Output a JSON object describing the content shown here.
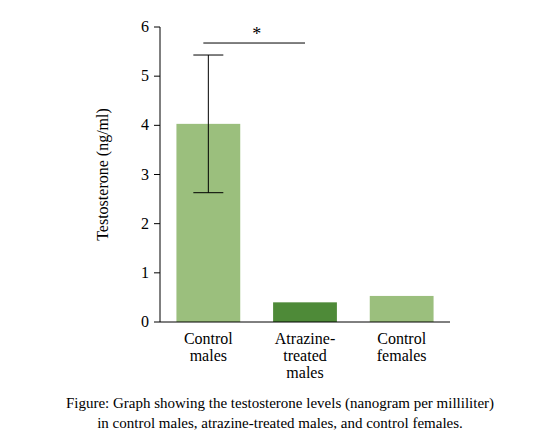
{
  "chart_data": {
    "type": "bar",
    "y_label": "Testosterone (ng/ml)",
    "categories": [
      "Control males",
      "Atrazine-treated males",
      "Control females"
    ],
    "values": [
      4.03,
      0.4,
      0.53
    ],
    "errors": [
      1.4,
      null,
      null
    ],
    "colors": [
      "#9bbf7d",
      "#4e8a38",
      "#9bbf7d"
    ],
    "ylim": [
      0,
      6
    ],
    "yticks": [
      0,
      1,
      2,
      3,
      4,
      5,
      6
    ],
    "grid": false,
    "annotations": [
      {
        "label": "*",
        "categories": [
          0,
          1
        ]
      }
    ],
    "caption": [
      "Figure: Graph showing the testosterone levels (nanogram per milliliter)",
      "in control males, atrazine-treated males, and control females."
    ]
  }
}
